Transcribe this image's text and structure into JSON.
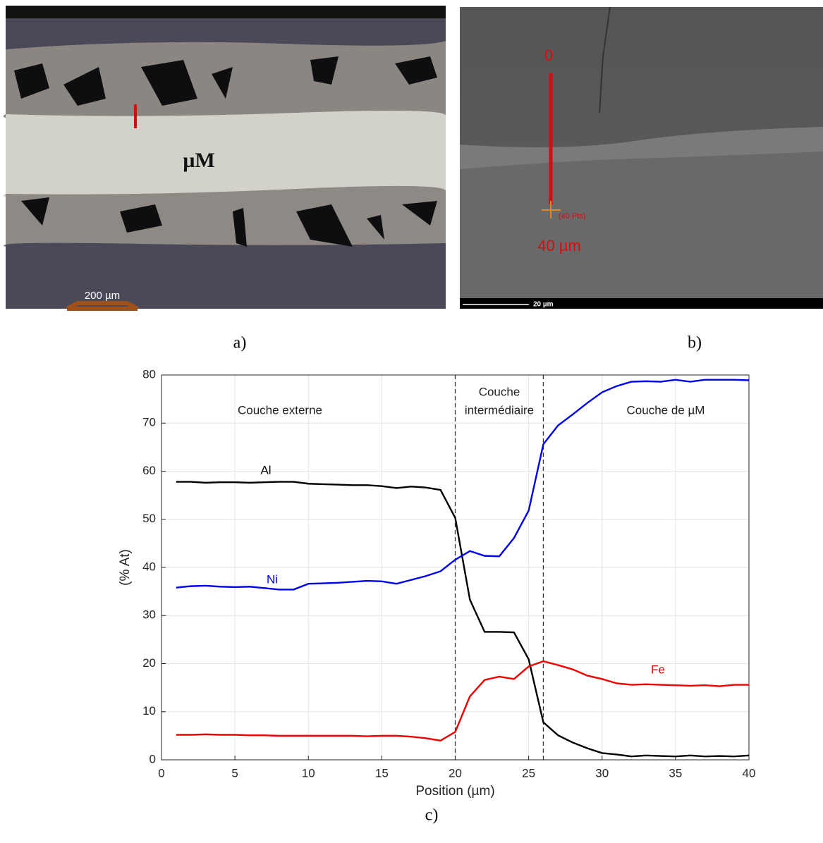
{
  "captions": {
    "a": "a)",
    "b": "b)",
    "c": "c)"
  },
  "micrograph_a": {
    "label": "µM",
    "scale_bar": "200 µm"
  },
  "micrograph_b": {
    "start": "0",
    "points": "(40 Pts)",
    "length": "40 µm",
    "scale_bar": "20 µm"
  },
  "chart_data": {
    "type": "line",
    "xlabel": "Position (µm)",
    "ylabel": "(% At)",
    "x": [
      1,
      2,
      3,
      4,
      5,
      6,
      7,
      8,
      9,
      10,
      11,
      12,
      13,
      14,
      15,
      16,
      17,
      18,
      19,
      20,
      21,
      22,
      23,
      24,
      25,
      26,
      27,
      28,
      29,
      30,
      31,
      32,
      33,
      34,
      35,
      36,
      37,
      38,
      39,
      40
    ],
    "series": [
      {
        "name": "Al",
        "color": "#000000",
        "values": [
          57.8,
          57.8,
          57.6,
          57.7,
          57.7,
          57.6,
          57.7,
          57.8,
          57.8,
          57.4,
          57.3,
          57.2,
          57.1,
          57.1,
          56.9,
          56.5,
          56.8,
          56.6,
          56.1,
          50.3,
          33.3,
          26.6,
          26.6,
          26.5,
          20.9,
          7.8,
          5.1,
          3.6,
          2.4,
          1.4,
          1.1,
          0.7,
          0.9,
          0.8,
          0.7,
          0.9,
          0.7,
          0.8,
          0.7,
          0.9
        ]
      },
      {
        "name": "Ni",
        "color": "#0000ee",
        "values": [
          35.8,
          36.1,
          36.2,
          36.0,
          35.9,
          36.0,
          35.7,
          35.4,
          35.4,
          36.6,
          36.7,
          36.8,
          37.0,
          37.2,
          37.1,
          36.6,
          37.4,
          38.2,
          39.2,
          41.6,
          43.4,
          42.4,
          42.3,
          46.1,
          51.8,
          65.6,
          69.5,
          71.8,
          74.2,
          76.4,
          77.7,
          78.6,
          78.7,
          78.6,
          79.0,
          78.6,
          79.0,
          79.0,
          79.0,
          78.9
        ]
      },
      {
        "name": "Fe",
        "color": "#ee0000",
        "values": [
          5.2,
          5.2,
          5.3,
          5.2,
          5.2,
          5.1,
          5.1,
          5.0,
          5.0,
          5.0,
          5.0,
          5.0,
          5.0,
          4.9,
          5.0,
          5.0,
          4.8,
          4.5,
          4.0,
          5.8,
          13.2,
          16.6,
          17.3,
          16.8,
          19.4,
          20.5,
          19.7,
          18.8,
          17.5,
          16.8,
          15.9,
          15.6,
          15.7,
          15.6,
          15.5,
          15.4,
          15.5,
          15.3,
          15.6,
          15.6
        ]
      }
    ],
    "vlines": [
      20,
      26
    ],
    "annotations": [
      "Couche externe",
      "Couche",
      "intermédiaire",
      "Couche de µM"
    ],
    "xlim": [
      0,
      40
    ],
    "xticks": [
      0,
      5,
      10,
      15,
      20,
      25,
      30,
      35,
      40
    ],
    "ylim": [
      0,
      80
    ],
    "yticks": [
      0,
      10,
      20,
      30,
      40,
      50,
      60,
      70,
      80
    ],
    "grid": true
  }
}
